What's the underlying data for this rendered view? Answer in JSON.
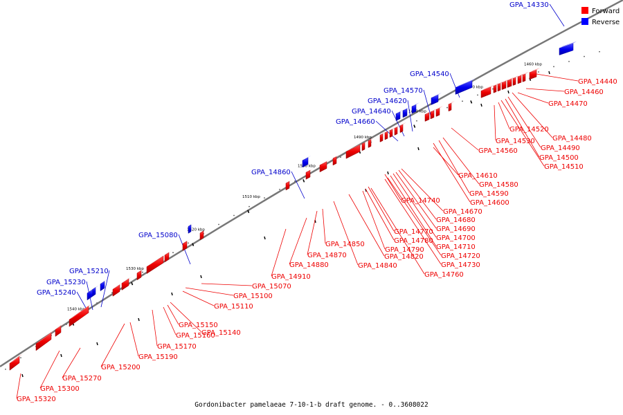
{
  "footer": "Gordonibacter pamelaeae 7-10-1-b draft genome. - 0..3608022",
  "legend": {
    "forward": {
      "label": "Forward",
      "color": "#ff0000"
    },
    "reverse": {
      "label": "Reverse",
      "color": "#0000ff"
    }
  },
  "ticks": [
    "1460 kbp",
    "1470 kbp",
    "1480 kbp",
    "1490 kbp",
    "1500 kbp",
    "1510 kbp",
    "1520 kbp",
    "1530 kbp",
    "1540 kbp"
  ],
  "forward_genes": [
    "GPA_14440",
    "GPA_14460",
    "GPA_14470",
    "GPA_14480",
    "GPA_14490",
    "GPA_14500",
    "GPA_14510",
    "GPA_14520",
    "GPA_14530",
    "GPA_14560",
    "GPA_14580",
    "GPA_14590",
    "GPA_14600",
    "GPA_14610",
    "GPA_14670",
    "GPA_14680",
    "GPA_14690",
    "GPA_14700",
    "GPA_14710",
    "GPA_14720",
    "GPA_14730",
    "GPA_14740",
    "GPA_14760",
    "GPA_14770",
    "GPA_14780",
    "GPA_14790",
    "GPA_14820",
    "GPA_14840",
    "GPA_14850",
    "GPA_14870",
    "GPA_14880",
    "GPA_14910",
    "GPA_15070",
    "GPA_15100",
    "GPA_15110",
    "GPA_15140",
    "GPA_15150",
    "GPA_15160",
    "GPA_15170",
    "GPA_15190",
    "GPA_15200",
    "GPA_15270",
    "GPA_15300",
    "GPA_15320"
  ],
  "reverse_genes": [
    "GPA_14330",
    "GPA_14540",
    "GPA_14570",
    "GPA_14620",
    "GPA_14640",
    "GPA_14660",
    "GPA_14860",
    "GPA_15080",
    "GPA_15210",
    "GPA_15230",
    "GPA_15240"
  ]
}
